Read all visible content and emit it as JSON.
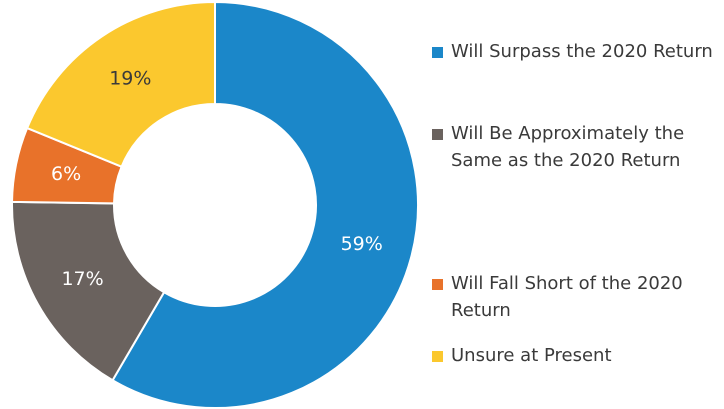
{
  "chart_data": {
    "type": "donut",
    "categories": [
      "Will Surpass the 2020 Return",
      "Will Be Approximately the Same as the 2020 Return",
      "Will Fall Short of the 2020 Return",
      "Unsure at Present"
    ],
    "values": [
      59,
      17,
      6,
      19
    ],
    "value_labels": [
      "59%",
      "17%",
      "6%",
      "19%"
    ],
    "colors": [
      "#1b87c9",
      "#6a625e",
      "#e8722a",
      "#fbc82e"
    ],
    "legend": "right"
  }
}
